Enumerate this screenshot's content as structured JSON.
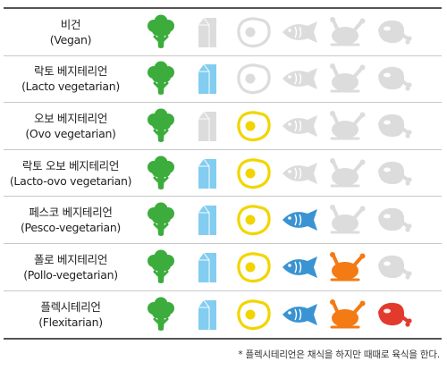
{
  "colors": {
    "broccoli": "#3cac3c",
    "milk": "#82cdf0",
    "egg": "#f2d500",
    "fish": "#3a93d2",
    "poultry": "#f47a14",
    "meat": "#e23b2e",
    "inactive": "#dcdcdc"
  },
  "columns": [
    "broccoli-icon",
    "milk-carton-icon",
    "egg-icon",
    "fish-icon",
    "poultry-icon",
    "meat-icon"
  ],
  "rows": [
    {
      "ko": "비건",
      "en": "(Vegan)",
      "active": [
        true,
        false,
        false,
        false,
        false,
        false
      ]
    },
    {
      "ko": "락토 베지테리언",
      "en": "(Lacto vegetarian)",
      "active": [
        true,
        true,
        false,
        false,
        false,
        false
      ]
    },
    {
      "ko": "오보 베지테리언",
      "en": "(Ovo vegetarian)",
      "active": [
        true,
        false,
        true,
        false,
        false,
        false
      ]
    },
    {
      "ko": "락토 오보 베지테리언",
      "en": "(Lacto-ovo vegetarian)",
      "active": [
        true,
        true,
        true,
        false,
        false,
        false
      ]
    },
    {
      "ko": "페스코 베지테리언",
      "en": "(Pesco-vegetarian)",
      "active": [
        true,
        true,
        true,
        true,
        false,
        false
      ]
    },
    {
      "ko": "폴로 베지테리언",
      "en": "(Pollo-vegetarian)",
      "active": [
        true,
        true,
        true,
        true,
        true,
        false
      ]
    },
    {
      "ko": "플렉시테리언",
      "en": "(Flexitarian)",
      "active": [
        true,
        true,
        true,
        true,
        true,
        true
      ]
    }
  ],
  "footnote": "* 플렉시테리언은 채식을 하지만 때때로 육식을 한다."
}
